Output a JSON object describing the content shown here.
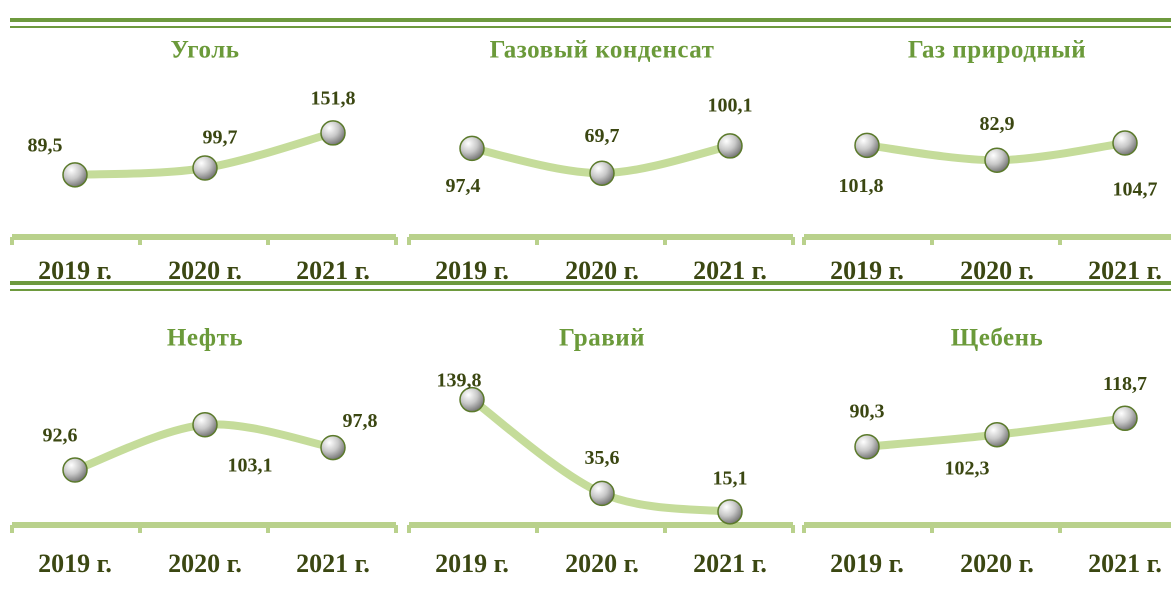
{
  "chart_data": [
    {
      "type": "line",
      "title": "Уголь",
      "categories": [
        "2019 г.",
        "2020 г.",
        "2021 г."
      ],
      "values": [
        89.5,
        99.7,
        151.8
      ],
      "value_labels": [
        "89,5",
        "99,7",
        "151,8"
      ],
      "ylim": [
        67,
        171
      ],
      "color": "#c5dc9a"
    },
    {
      "type": "line",
      "title": "Газовый конденсат",
      "categories": [
        "2019 г.",
        "2020 г.",
        "2021 г."
      ],
      "values": [
        97.4,
        69.7,
        100.1
      ],
      "value_labels": [
        "97,4",
        "69,7",
        "100,1"
      ],
      "ylim": [
        51,
        129
      ],
      "color": "#c5dc9a"
    },
    {
      "type": "line",
      "title": "Газ природный",
      "categories": [
        "2019 г.",
        "2020 г.",
        "2021 г."
      ],
      "values": [
        101.8,
        82.9,
        104.7
      ],
      "value_labels": [
        "101,8",
        "82,9",
        "104,7"
      ],
      "ylim": [
        45,
        134
      ],
      "color": "#c5dc9a"
    },
    {
      "type": "line",
      "title": "Нефть",
      "categories": [
        "2019 г.",
        "2020 г.",
        "2021 г."
      ],
      "values": [
        92.6,
        103.1,
        97.8
      ],
      "value_labels": [
        "92,6",
        "103,1",
        "97,8"
      ],
      "ylim": [
        81,
        110
      ],
      "color": "#c5dc9a"
    },
    {
      "type": "line",
      "title": "Гравий",
      "categories": [
        "2019 г.",
        "2020 г.",
        "2021 г."
      ],
      "values": [
        139.8,
        35.6,
        15.1
      ],
      "value_labels": [
        "139,8",
        "35,6",
        "15,1"
      ],
      "ylim": [
        6,
        145
      ],
      "color": "#c5dc9a"
    },
    {
      "type": "line",
      "title": "Щебень",
      "categories": [
        "2019 г.",
        "2020 г.",
        "2021 г."
      ],
      "values": [
        90.3,
        102.3,
        118.7
      ],
      "value_labels": [
        "90,3",
        "102,3",
        "118,7"
      ],
      "ylim": [
        17,
        142
      ],
      "color": "#c5dc9a"
    }
  ]
}
